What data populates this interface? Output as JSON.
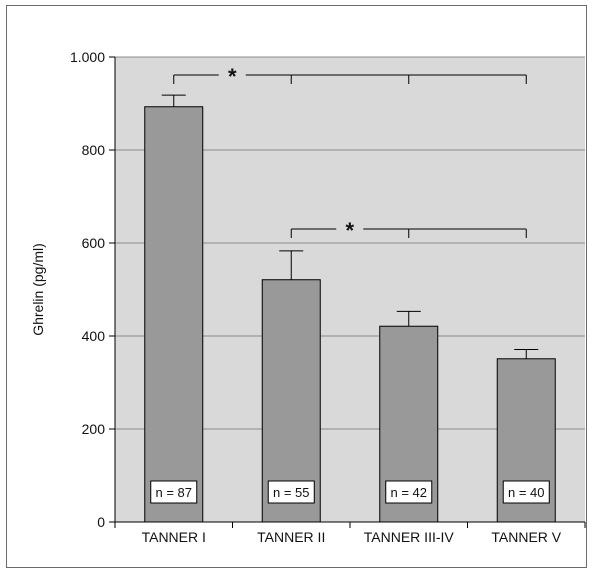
{
  "chart_data": {
    "type": "bar",
    "categories": [
      "TANNER I",
      "TANNER II",
      "TANNER III-IV",
      "TANNER V"
    ],
    "values": [
      893,
      521,
      421,
      351
    ],
    "error_upper": [
      918,
      583,
      453,
      371
    ],
    "n_labels": [
      "n = 87",
      "n = 55",
      "n = 42",
      "n = 40"
    ],
    "ylabel": "Ghrelin (pg/ml)",
    "ylim": [
      0,
      1000
    ],
    "yticks": [
      0,
      200,
      400,
      600,
      800,
      1000
    ],
    "ytick_labels": [
      "0",
      "200",
      "400",
      "600",
      "800",
      "1.000"
    ],
    "grid": true,
    "colors": {
      "plot_bg": "#d9d9d9",
      "bar": "#999999",
      "grid": "#8c8c8c",
      "axis": "#000000"
    },
    "significance": [
      {
        "from": 0,
        "to": [
          1,
          2,
          3
        ],
        "label": "*"
      },
      {
        "from": 1,
        "to": [
          2,
          3
        ],
        "label": "*"
      }
    ]
  }
}
